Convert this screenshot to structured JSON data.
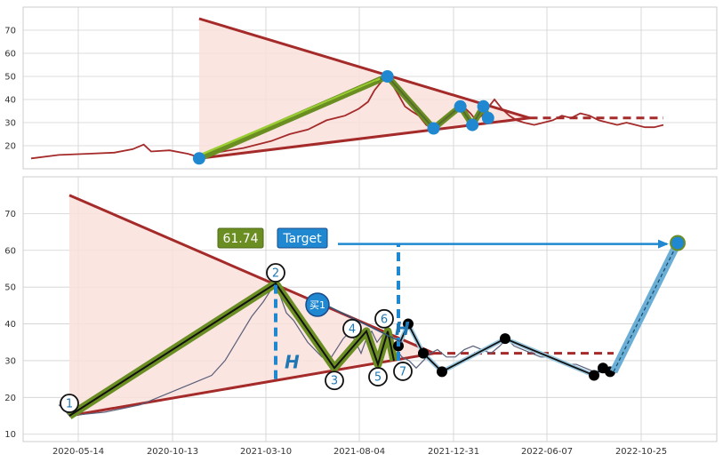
{
  "chart_data": [
    {
      "type": "line",
      "panel": "top",
      "ylim": [
        10,
        80
      ],
      "yticks": [
        "20",
        "30",
        "40",
        "50",
        "60",
        "70"
      ],
      "grid": true,
      "series": [
        {
          "values_xy": [
            [
              0,
              14.5
            ],
            [
              20,
              15.5
            ],
            [
              40,
              16
            ],
            [
              60,
              17
            ],
            [
              80,
              17.5
            ],
            [
              100,
              19
            ],
            [
              115,
              21
            ],
            [
              125,
              17
            ],
            [
              140,
              17.5
            ],
            [
              155,
              18
            ],
            [
              175,
              20
            ],
            [
              195,
              22
            ],
            [
              215,
              25
            ],
            [
              230,
              27
            ],
            [
              245,
              29
            ],
            [
              260,
              31
            ],
            [
              275,
              33
            ],
            [
              290,
              36
            ],
            [
              300,
              40
            ],
            [
              310,
              44
            ],
            [
              320,
              47
            ],
            [
              330,
              49
            ],
            [
              338,
              50
            ],
            [
              345,
              48
            ],
            [
              352,
              44
            ],
            [
              360,
              38
            ],
            [
              368,
              35
            ],
            [
              375,
              33
            ],
            [
              383,
              29
            ],
            [
              392,
              28
            ],
            [
              400,
              30
            ],
            [
              410,
              33
            ],
            [
              420,
              36
            ],
            [
              432,
              35
            ],
            [
              440,
              32
            ],
            [
              448,
              36
            ],
            [
              456,
              38
            ],
            [
              470,
              33
            ],
            [
              480,
              30
            ],
            [
              490,
              30
            ],
            [
              500,
              28
            ],
            [
              510,
              29
            ],
            [
              520,
              31
            ],
            [
              530,
              32
            ],
            [
              540,
              31
            ],
            [
              550,
              30
            ],
            [
              560,
              33
            ],
            [
              570,
              34
            ],
            [
              578,
              32
            ],
            [
              590,
              31
            ],
            [
              600,
              31
            ],
            [
              610,
              30
            ],
            [
              620,
              29
            ],
            [
              630,
              30
            ],
            [
              640,
              28
            ],
            [
              650,
              28
            ],
            [
              660,
              29
            ],
            [
              670,
              27
            ],
            [
              685,
              29
            ]
          ]
        }
      ],
      "triangle": {
        "apex": [
          0,
          75
        ],
        "upper_end": [
          470,
          32
        ],
        "lower_start": [
          0,
          16
        ],
        "lower_end": [
          470,
          32
        ],
        "extend_to": 685,
        "extend_value": 32
      },
      "pattern_points": [
        [
          0,
          14.5
        ],
        [
          338,
          50
        ],
        [
          392,
          28
        ],
        [
          430,
          36
        ],
        [
          440,
          29
        ],
        [
          452,
          36
        ],
        [
          456,
          33
        ]
      ]
    },
    {
      "type": "line",
      "panel": "bottom",
      "ylim": [
        8,
        80
      ],
      "yticks": [
        "10",
        "20",
        "30",
        "40",
        "50",
        "60",
        "70"
      ],
      "xticks": [
        "2020-05-14",
        "2020-10-13",
        "2021-03-10",
        "2021-08-04",
        "2021-12-31",
        "2022-06-07",
        "2022-10-25"
      ],
      "grid": true,
      "price_series": [
        [
          0,
          18
        ],
        [
          10,
          16
        ],
        [
          20,
          15
        ],
        [
          40,
          16
        ],
        [
          60,
          17
        ],
        [
          80,
          18
        ],
        [
          100,
          20
        ],
        [
          120,
          22
        ],
        [
          140,
          25
        ],
        [
          160,
          27
        ],
        [
          180,
          32
        ],
        [
          200,
          38
        ],
        [
          215,
          45
        ],
        [
          225,
          48
        ],
        [
          232,
          51
        ],
        [
          238,
          47
        ],
        [
          245,
          43
        ],
        [
          255,
          40
        ],
        [
          265,
          36
        ],
        [
          275,
          33
        ],
        [
          285,
          31
        ],
        [
          295,
          33
        ],
        [
          305,
          36
        ],
        [
          315,
          38
        ],
        [
          322,
          35
        ],
        [
          330,
          32
        ],
        [
          338,
          36
        ],
        [
          345,
          38
        ],
        [
          352,
          36
        ],
        [
          360,
          33
        ],
        [
          370,
          31
        ],
        [
          380,
          28
        ],
        [
          390,
          30
        ],
        [
          400,
          32
        ],
        [
          410,
          33
        ],
        [
          420,
          31
        ],
        [
          430,
          31
        ],
        [
          440,
          33
        ],
        [
          450,
          34
        ],
        [
          460,
          33
        ],
        [
          470,
          33
        ],
        [
          480,
          32
        ],
        [
          490,
          36
        ],
        [
          500,
          34
        ],
        [
          510,
          33
        ],
        [
          520,
          32
        ],
        [
          530,
          32
        ],
        [
          540,
          31
        ],
        [
          550,
          31
        ],
        [
          560,
          30
        ],
        [
          570,
          29
        ],
        [
          580,
          29
        ],
        [
          585,
          27
        ],
        [
          595,
          27
        ]
      ],
      "triangle": {
        "apex": [
          0,
          75
        ],
        "upper_end": [
          410,
          32
        ],
        "lower_start": [
          0,
          15
        ],
        "lower_end": [
          410,
          32
        ],
        "extend_to": 612,
        "extend_value": 32
      },
      "waves": [
        {
          "label": "1",
          "x": 0,
          "y": 15
        },
        {
          "label": "2",
          "x": 232,
          "y": 51
        },
        {
          "label": "3",
          "x": 298,
          "y": 28
        },
        {
          "label": "4",
          "x": 334,
          "y": 38
        },
        {
          "label": "5",
          "x": 347,
          "y": 29
        },
        {
          "label": "6",
          "x": 358,
          "y": 38
        },
        {
          "label": "7",
          "x": 365,
          "y": 30
        }
      ],
      "black_path": [
        [
          370,
          34
        ],
        [
          381,
          40
        ],
        [
          398,
          32
        ],
        [
          419,
          27
        ],
        [
          490,
          36
        ],
        [
          590,
          26
        ],
        [
          600,
          28
        ],
        [
          608,
          27
        ]
      ],
      "target_leg": {
        "from": [
          612,
          27
        ],
        "to": [
          684,
          62
        ]
      },
      "target_value": 61.74,
      "target_label": "Target",
      "value_badge": "61.74",
      "buy_label": "买1",
      "h_label": "H",
      "h_lines": [
        {
          "x": 232,
          "y1": 25,
          "y2": 51
        },
        {
          "x": 370,
          "y1": 30,
          "y2": 62
        }
      ]
    }
  ],
  "colors": {
    "price_top": "#a52a2a",
    "price_bottom": "#5a5f7a",
    "triangle_fill": "#f9e0dc",
    "triangle_line": "#a52a2a",
    "zigzag_olive": "#6b8e23",
    "zigzag_inner": "#111111",
    "accent_blue": "#1f88d0",
    "badge_green": "#6b8e23",
    "badge_blue": "#1f88d0",
    "grid": "#d0d0d0"
  }
}
